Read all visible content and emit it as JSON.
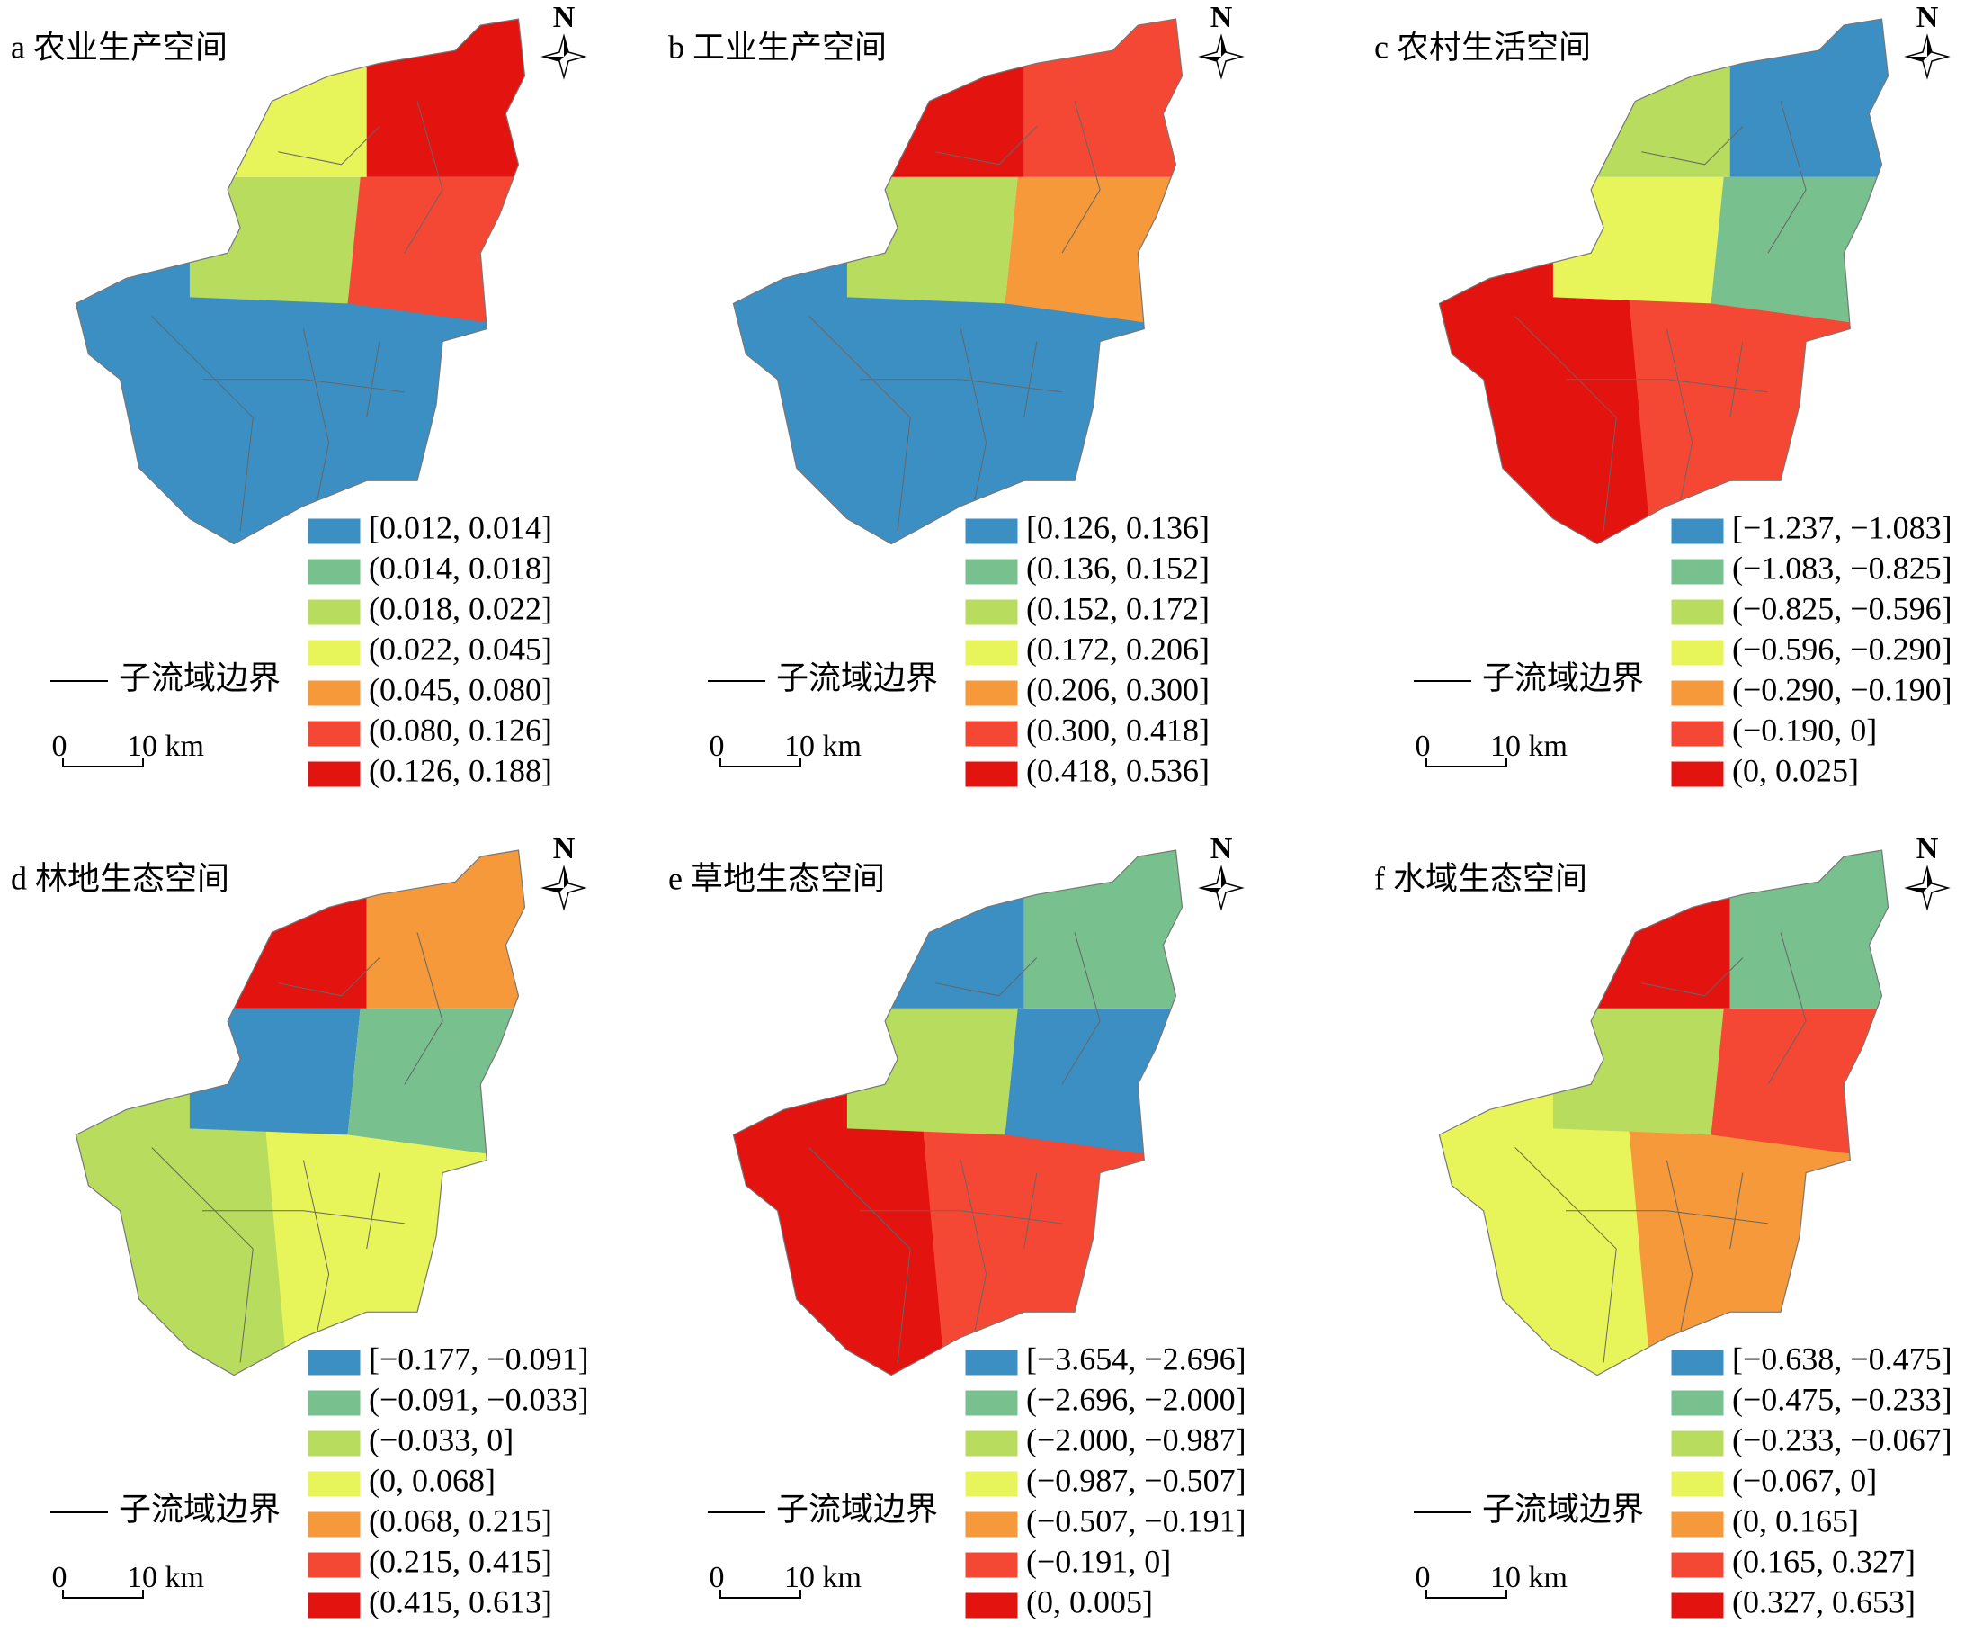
{
  "legend_colors": [
    "#3c8fc3",
    "#78c08e",
    "#b7dc5e",
    "#e8f55a",
    "#f5993a",
    "#f54834",
    "#e3130f"
  ],
  "panels": [
    {
      "title": "a 农业生产空间",
      "legend": [
        "[0.012, 0.014]",
        "(0.014, 0.018]",
        "(0.018, 0.022]",
        "(0.022, 0.045]",
        "(0.045, 0.080]",
        "(0.080, 0.126]",
        "(0.126, 0.188]"
      ],
      "boundary_label": "子流域边界",
      "scale_zero": "0",
      "scale_label": "10 km",
      "north": "N"
    },
    {
      "title": "b 工业生产空间",
      "legend": [
        "[0.126, 0.136]",
        "(0.136, 0.152]",
        "(0.152, 0.172]",
        "(0.172, 0.206]",
        "(0.206, 0.300]",
        "(0.300, 0.418]",
        "(0.418, 0.536]"
      ],
      "boundary_label": "子流域边界",
      "scale_zero": "0",
      "scale_label": "10 km",
      "north": "N"
    },
    {
      "title": "c 农村生活空间",
      "legend": [
        "[−1.237, −1.083]",
        "(−1.083, −0.825]",
        "(−0.825, −0.596]",
        "(−0.596, −0.290]",
        "(−0.290, −0.190]",
        "(−0.190, 0]",
        "(0, 0.025]"
      ],
      "boundary_label": "子流域边界",
      "scale_zero": "0",
      "scale_label": "10 km",
      "north": "N"
    },
    {
      "title": "d 林地生态空间",
      "legend": [
        "[−0.177, −0.091]",
        "(−0.091, −0.033]",
        "(−0.033, 0]",
        "(0, 0.068]",
        "(0.068, 0.215]",
        "(0.215, 0.415]",
        "(0.415, 0.613]"
      ],
      "boundary_label": "子流域边界",
      "scale_zero": "0",
      "scale_label": "10 km",
      "north": "N"
    },
    {
      "title": "e 草地生态空间",
      "legend": [
        "[−3.654, −2.696]",
        "(−2.696, −2.000]",
        "(−2.000, −0.987]",
        "(−0.987, −0.507]",
        "(−0.507, −0.191]",
        "(−0.191, 0]",
        "(0, 0.005]"
      ],
      "boundary_label": "子流域边界",
      "scale_zero": "0",
      "scale_label": "10 km",
      "north": "N"
    },
    {
      "title": "f 水域生态空间",
      "legend": [
        "[−0.638, −0.475]",
        "(−0.475, −0.233]",
        "(−0.233, −0.067]",
        "(−0.067, 0]",
        "(0, 0.165]",
        "(0.165, 0.327]",
        "(0.327, 0.653]"
      ],
      "boundary_label": "子流域边界",
      "scale_zero": "0",
      "scale_label": "10 km",
      "north": "N"
    }
  ]
}
